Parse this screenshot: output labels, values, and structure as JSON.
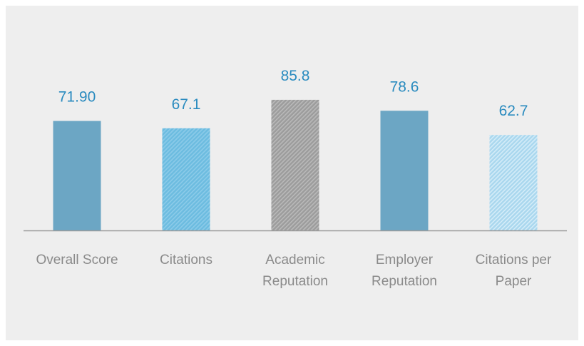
{
  "chart_data": {
    "type": "bar",
    "categories": [
      [
        "Overall Score"
      ],
      [
        "Citations"
      ],
      [
        "Academic",
        "Reputation"
      ],
      [
        "Employer",
        "Reputation"
      ],
      [
        "Citations per",
        "Paper"
      ]
    ],
    "values": [
      71.9,
      67.1,
      85.8,
      78.6,
      62.7
    ],
    "value_labels": [
      "71.90",
      "67.1",
      "85.8",
      "78.6",
      "62.7"
    ],
    "ylim": [
      0,
      100
    ],
    "grid": false,
    "legend": "none",
    "colors": {
      "background": "#eeeeee",
      "axis": "#9a9a9a",
      "value_text": "#2a8bbf",
      "category_text": "#8a8a8a",
      "bars": [
        {
          "fill": "#6ca6c4",
          "pattern": "solid"
        },
        {
          "fill": "#6cbce0",
          "pattern": "hatch",
          "stripe": "#8ccbe9"
        },
        {
          "fill": "#9c9c9c",
          "pattern": "hatch",
          "stripe": "#b9b9b9"
        },
        {
          "fill": "#6ca6c4",
          "pattern": "solid"
        },
        {
          "fill": "#a9d7ee",
          "pattern": "hatch",
          "stripe": "#d4ecf8"
        }
      ]
    }
  }
}
